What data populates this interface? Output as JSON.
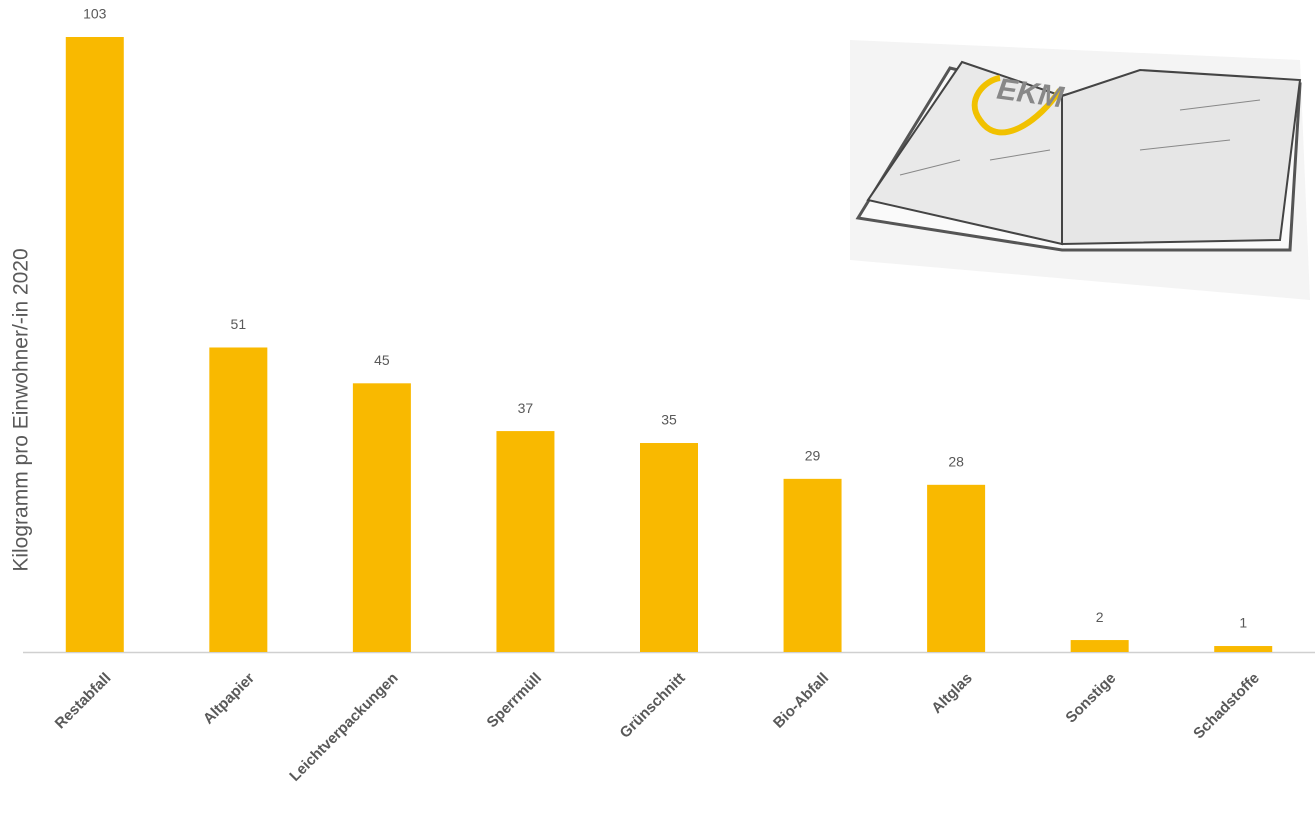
{
  "chart_data": {
    "type": "bar",
    "y_label": "Kilogramm pro Einwohner/-in 2020",
    "categories": [
      "Restabfall",
      "Altpapier",
      "Leichtverpackungen",
      "Sperrmüll",
      "Grünschnitt",
      "Bio-Abfall",
      "Altglas",
      "Sonstige",
      "Schadstoffe"
    ],
    "values": [
      103,
      51,
      45,
      37,
      35,
      29,
      28,
      2,
      1
    ],
    "color": "#f9b900",
    "ylim": [
      0,
      103
    ],
    "logo": "EKM"
  }
}
